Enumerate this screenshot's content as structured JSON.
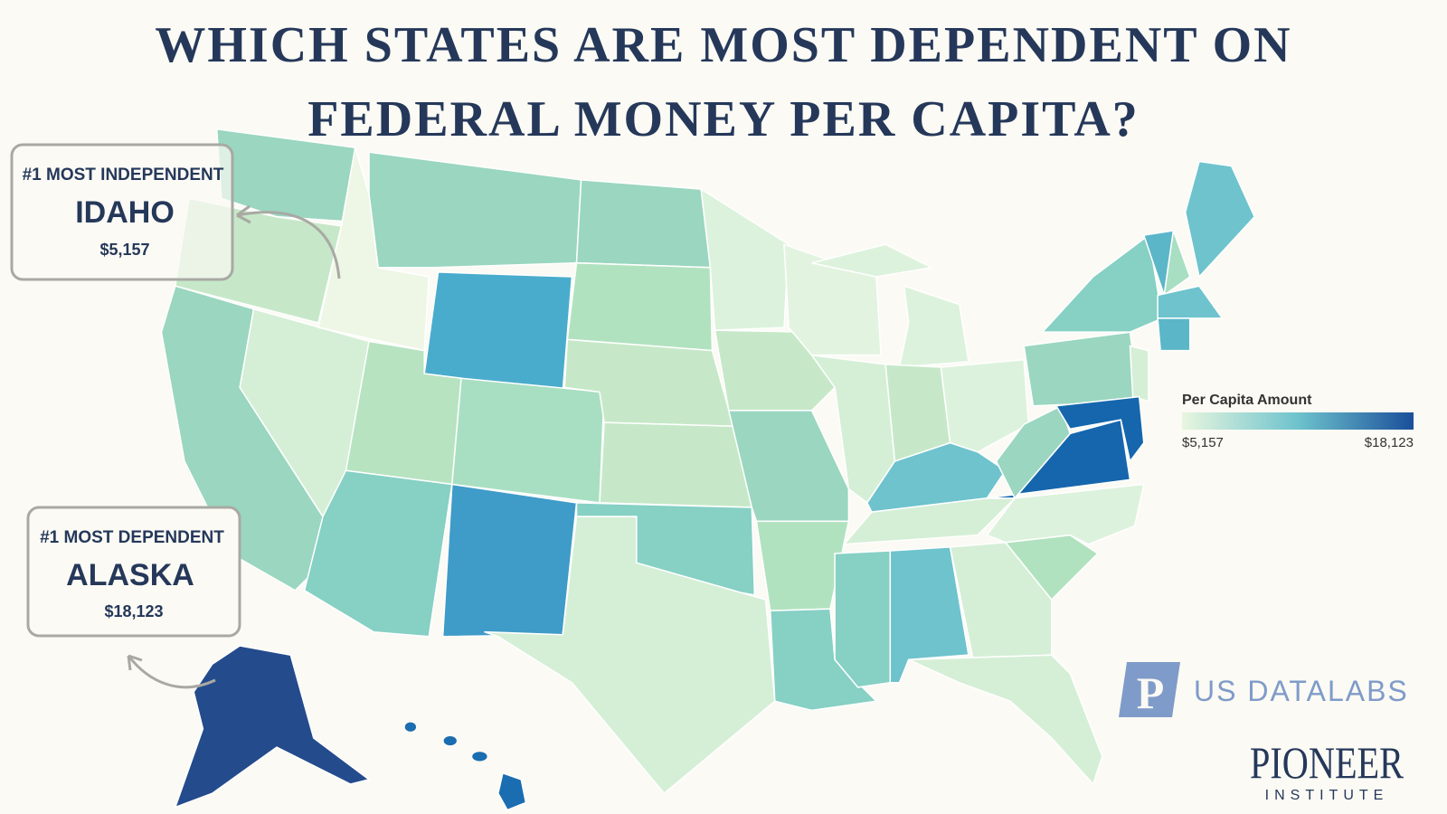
{
  "header": {
    "title_lines": [
      "WHICH STATES ARE MOST DEPENDENT ON",
      "FEDERAL MONEY PER CAPITA?"
    ]
  },
  "callouts": [
    {
      "label": "#1 MOST INDEPENDENT",
      "state": "IDAHO",
      "amount": "$5,157"
    },
    {
      "label": "#1 MOST DEPENDENT",
      "state": "ALASKA",
      "amount": "$18,123"
    }
  ],
  "legend": {
    "title": "Per Capita Amount",
    "min_label": "$5,157",
    "max_label": "$18,123"
  },
  "logos": {
    "datalabs_mark": "P",
    "datalabs": "US DATALABS",
    "pioneer": "PIONEER",
    "institute": "INSTITUTE"
  }
}
